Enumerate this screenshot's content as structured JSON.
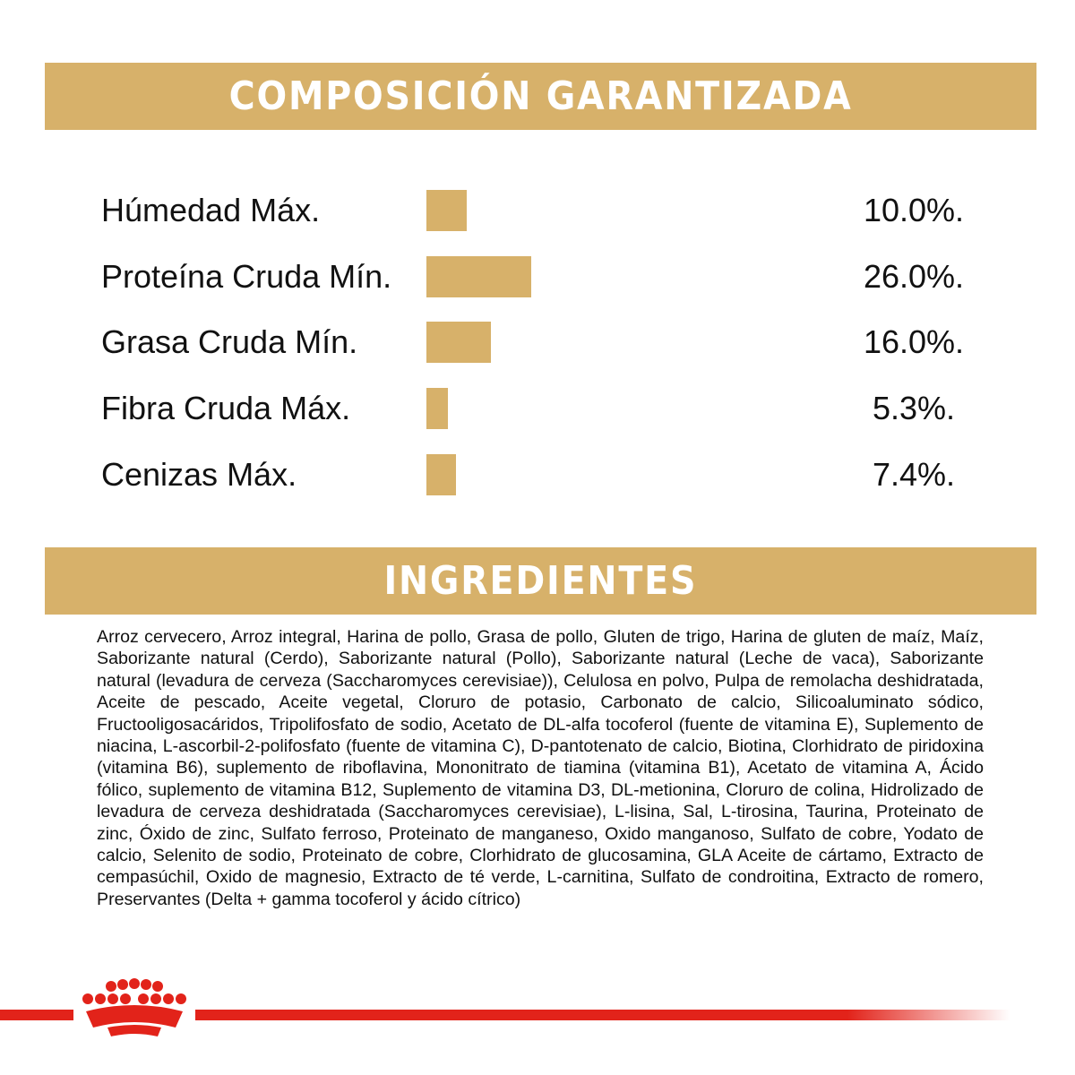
{
  "composition": {
    "title": "COMPOSICIÓN GARANTIZADA",
    "rows": [
      {
        "label": "Húmedad Máx.",
        "value": 10.0,
        "value_label": "10.0%."
      },
      {
        "label": "Proteína Cruda Mín.",
        "value": 26.0,
        "value_label": "26.0%."
      },
      {
        "label": "Grasa Cruda Mín.",
        "value": 16.0,
        "value_label": "16.0%."
      },
      {
        "label": "Fibra Cruda Máx.",
        "value": 5.3,
        "value_label": "5.3%."
      },
      {
        "label": "Cenizas Máx.",
        "value": 7.4,
        "value_label": "7.4%."
      }
    ]
  },
  "ingredients": {
    "title": "INGREDIENTES",
    "text": "Arroz cervecero, Arroz integral, Harina de pollo, Grasa de pollo, Gluten de trigo, Harina de gluten de maíz, Maíz, Saborizante natural (Cerdo), Saborizante natural (Pollo), Saborizante natural (Leche de vaca), Saborizante natural (levadura de cerveza (Saccharomyces cerevisiae)), Celulosa en polvo, Pulpa de remolacha deshidratada, Aceite de pescado, Aceite vegetal, Cloruro de potasio, Carbonato de calcio, Silicoaluminato sódico, Fructooligosacáridos, Tripolifosfato de sodio, Acetato de DL-alfa tocoferol (fuente de vitamina E), Suplemento de niacina, L-ascorbil-2-polifosfato (fuente de vitamina C), D-pantotenato de calcio, Biotina, Clorhidrato de piridoxina (vitamina B6), suplemento de riboflavina, Mononitrato de tiamina (vitamina B1), Acetato de vitamina A, Ácido fólico, suplemento de vitamina B12, Suplemento de vitamina D3, DL-metionina, Cloruro de colina, Hidrolizado de levadura de cerveza deshidratada (Saccharomyces cerevisiae), L-lisina, Sal, L-tirosina, Taurina, Proteinato de zinc, Óxido de zinc, Sulfato ferroso, Proteinato de manganeso, Oxido manganoso, Sulfato de cobre, Yodato de calcio, Selenito de sodio, Proteinato de cobre, Clorhidrato de glucosamina, GLA Aceite de cártamo, Extracto de cempasúchil, Oxido de magnesio, Extracto de té verde, L-carnitina, Sulfato de condroitina, Extracto de romero, Preservantes (Delta + gamma tocoferol y ácido cítrico)"
  }
}
